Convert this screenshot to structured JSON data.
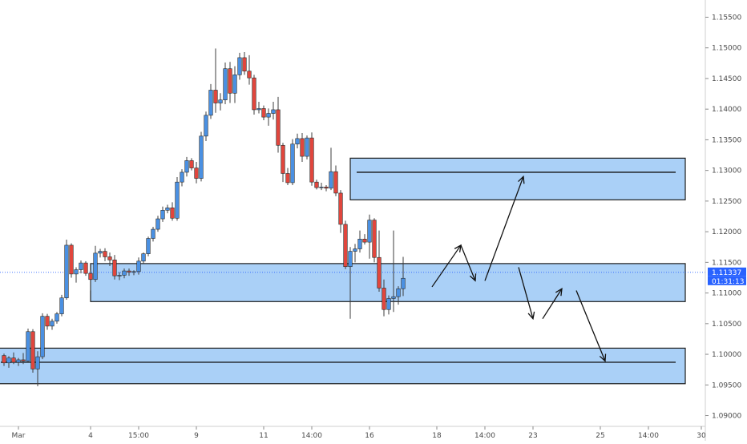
{
  "chart_data": {
    "type": "candlestick",
    "symbol_unlabeled": true,
    "y_axis": {
      "position": "right",
      "ylim": [
        1.0885,
        1.1565
      ],
      "ticks": [
        "1.15500",
        "1.15000",
        "1.14500",
        "1.14000",
        "1.13500",
        "1.13000",
        "1.12500",
        "1.12000",
        "1.11500",
        "1.11000",
        "1.10500",
        "1.10000",
        "1.09500",
        "1.09000"
      ]
    },
    "x_axis": {
      "ticks": [
        {
          "label": "Mar",
          "bar": 3
        },
        {
          "label": "4",
          "bar": 18
        },
        {
          "label": "15:00",
          "bar": 28
        },
        {
          "label": "9",
          "bar": 40
        },
        {
          "label": "11",
          "bar": 54
        },
        {
          "label": "14:00",
          "bar": 64
        },
        {
          "label": "16",
          "bar": 76
        },
        {
          "label": "18",
          "bar": 90
        },
        {
          "label": "14:00",
          "bar": 100
        },
        {
          "label": "23",
          "bar": 110
        },
        {
          "label": "25",
          "bar": 124
        },
        {
          "label": "14:00",
          "bar": 134
        },
        {
          "label": "30",
          "bar": 145
        }
      ],
      "bar_count": 151
    },
    "current_price": {
      "value": 1.11337,
      "label": "1.11337",
      "countdown": "01:31:13",
      "color": "#2962ff"
    },
    "colors": {
      "up": "#4a90e2",
      "down": "#e0463d",
      "wick": "#3c3c3c",
      "zone_fill": "#a5cdf7",
      "zone_border": "#1c1c1c"
    },
    "candles": [
      [
        1.0998,
        1.1001,
        1.0981,
        1.0986
      ],
      [
        1.0986,
        1.0997,
        1.0978,
        1.0994
      ],
      [
        1.0994,
        1.1003,
        1.0984,
        1.0987
      ],
      [
        1.0987,
        1.0994,
        1.0981,
        1.0991
      ],
      [
        1.0991,
        1.1002,
        1.0984,
        1.0989
      ],
      [
        1.0989,
        1.1042,
        1.0986,
        1.1037
      ],
      [
        1.1037,
        1.1041,
        1.097,
        1.0976
      ],
      [
        1.0976,
        1.1005,
        1.0948,
        1.0996
      ],
      [
        1.0996,
        1.1067,
        1.0992,
        1.1062
      ],
      [
        1.1062,
        1.1066,
        1.104,
        1.1046
      ],
      [
        1.1046,
        1.1058,
        1.104,
        1.1054
      ],
      [
        1.1054,
        1.1069,
        1.105,
        1.1066
      ],
      [
        1.1066,
        1.1097,
        1.1062,
        1.1092
      ],
      [
        1.1092,
        1.1187,
        1.1089,
        1.1178
      ],
      [
        1.1178,
        1.1181,
        1.1125,
        1.1131
      ],
      [
        1.1131,
        1.1142,
        1.1117,
        1.1138
      ],
      [
        1.1138,
        1.1153,
        1.1132,
        1.1149
      ],
      [
        1.1149,
        1.1152,
        1.1128,
        1.1132
      ],
      [
        1.1132,
        1.1137,
        1.1104,
        1.1122
      ],
      [
        1.1122,
        1.1177,
        1.1118,
        1.1165
      ],
      [
        1.1165,
        1.1172,
        1.1158,
        1.1168
      ],
      [
        1.1168,
        1.1173,
        1.1152,
        1.1159
      ],
      [
        1.1159,
        1.1166,
        1.1144,
        1.1154
      ],
      [
        1.1154,
        1.1162,
        1.1122,
        1.1128
      ],
      [
        1.1128,
        1.1134,
        1.1121,
        1.1129
      ],
      [
        1.1129,
        1.114,
        1.1124,
        1.1136
      ],
      [
        1.1136,
        1.114,
        1.1128,
        1.1134
      ],
      [
        1.1134,
        1.1137,
        1.1129,
        1.1135
      ],
      [
        1.1135,
        1.1158,
        1.113,
        1.1152
      ],
      [
        1.1152,
        1.1166,
        1.1148,
        1.1164
      ],
      [
        1.1164,
        1.1192,
        1.116,
        1.1189
      ],
      [
        1.1189,
        1.1208,
        1.1184,
        1.1204
      ],
      [
        1.1204,
        1.1226,
        1.12,
        1.1221
      ],
      [
        1.1221,
        1.1241,
        1.1216,
        1.1235
      ],
      [
        1.1235,
        1.1244,
        1.123,
        1.1239
      ],
      [
        1.1239,
        1.1248,
        1.1218,
        1.1222
      ],
      [
        1.1222,
        1.1289,
        1.1218,
        1.1281
      ],
      [
        1.1281,
        1.1302,
        1.1274,
        1.1297
      ],
      [
        1.1297,
        1.1322,
        1.129,
        1.1316
      ],
      [
        1.1316,
        1.132,
        1.13,
        1.1304
      ],
      [
        1.1304,
        1.1314,
        1.1279,
        1.1287
      ],
      [
        1.1287,
        1.1363,
        1.1282,
        1.1356
      ],
      [
        1.1356,
        1.1396,
        1.1348,
        1.139
      ],
      [
        1.139,
        1.1441,
        1.1384,
        1.1431
      ],
      [
        1.1431,
        1.1499,
        1.1394,
        1.141
      ],
      [
        1.141,
        1.1426,
        1.1398,
        1.1415
      ],
      [
        1.1415,
        1.1476,
        1.1408,
        1.1466
      ],
      [
        1.1466,
        1.1477,
        1.141,
        1.1426
      ],
      [
        1.1426,
        1.147,
        1.141,
        1.1456
      ],
      [
        1.1456,
        1.1492,
        1.1448,
        1.1484
      ],
      [
        1.1484,
        1.1493,
        1.1456,
        1.1462
      ],
      [
        1.1462,
        1.1488,
        1.144,
        1.1451
      ],
      [
        1.1451,
        1.1456,
        1.1391,
        1.1399
      ],
      [
        1.1399,
        1.1412,
        1.1393,
        1.1401
      ],
      [
        1.1401,
        1.1406,
        1.1382,
        1.1387
      ],
      [
        1.1387,
        1.1401,
        1.1373,
        1.1393
      ],
      [
        1.1393,
        1.1412,
        1.1383,
        1.1399
      ],
      [
        1.1399,
        1.142,
        1.1329,
        1.1341
      ],
      [
        1.1341,
        1.1345,
        1.1281,
        1.1295
      ],
      [
        1.1295,
        1.1304,
        1.1276,
        1.128
      ],
      [
        1.128,
        1.1351,
        1.1276,
        1.1343
      ],
      [
        1.1343,
        1.136,
        1.1336,
        1.1352
      ],
      [
        1.1352,
        1.1361,
        1.1314,
        1.1323
      ],
      [
        1.1323,
        1.1357,
        1.1318,
        1.1353
      ],
      [
        1.1353,
        1.1362,
        1.1275,
        1.1281
      ],
      [
        1.1281,
        1.1285,
        1.1269,
        1.1272
      ],
      [
        1.1272,
        1.128,
        1.1268,
        1.1273
      ],
      [
        1.1273,
        1.1276,
        1.1266,
        1.1271
      ],
      [
        1.1271,
        1.1337,
        1.1268,
        1.1298
      ],
      [
        1.1298,
        1.1308,
        1.1258,
        1.1263
      ],
      [
        1.1263,
        1.1268,
        1.1198,
        1.1212
      ],
      [
        1.1212,
        1.1218,
        1.1139,
        1.1143
      ],
      [
        1.1143,
        1.1175,
        1.1058,
        1.1168
      ],
      [
        1.1168,
        1.118,
        1.115,
        1.1172
      ],
      [
        1.1172,
        1.1202,
        1.1166,
        1.1188
      ],
      [
        1.1188,
        1.1196,
        1.1179,
        1.1183
      ],
      [
        1.1183,
        1.1228,
        1.1156,
        1.1219
      ],
      [
        1.1219,
        1.1222,
        1.115,
        1.1158
      ],
      [
        1.1158,
        1.1202,
        1.1102,
        1.1108
      ],
      [
        1.1108,
        1.1122,
        1.1062,
        1.1073
      ],
      [
        1.1073,
        1.1096,
        1.1065,
        1.1091
      ],
      [
        1.1091,
        1.1202,
        1.1069,
        1.1094
      ],
      [
        1.1094,
        1.1111,
        1.1081,
        1.1107
      ],
      [
        1.1107,
        1.1159,
        1.1095,
        1.1124
      ]
    ],
    "zones": [
      {
        "from_bar": 72,
        "to_bar": 151,
        "top": 1.132,
        "bottom": 1.1252,
        "line": 1.1297
      },
      {
        "from_bar": 18,
        "to_bar": 151,
        "top": 1.1148,
        "bottom": 1.1086,
        "line": null
      },
      {
        "from_bar": -2,
        "to_bar": 151,
        "top": 1.101,
        "bottom": 1.0952,
        "line": 1.0987
      }
    ],
    "projection_arrows": [
      [
        [
          89,
          1.111
        ],
        [
          95,
          1.1178
        ]
      ],
      [
        [
          95,
          1.1178
        ],
        [
          98,
          1.112
        ]
      ],
      [
        [
          100,
          1.112
        ],
        [
          108,
          1.129
        ]
      ],
      [
        [
          107,
          1.1142
        ],
        [
          110,
          1.1058
        ]
      ],
      [
        [
          112,
          1.1058
        ],
        [
          116,
          1.1107
        ]
      ],
      [
        [
          119,
          1.1104
        ],
        [
          125,
          1.0989
        ]
      ]
    ]
  }
}
